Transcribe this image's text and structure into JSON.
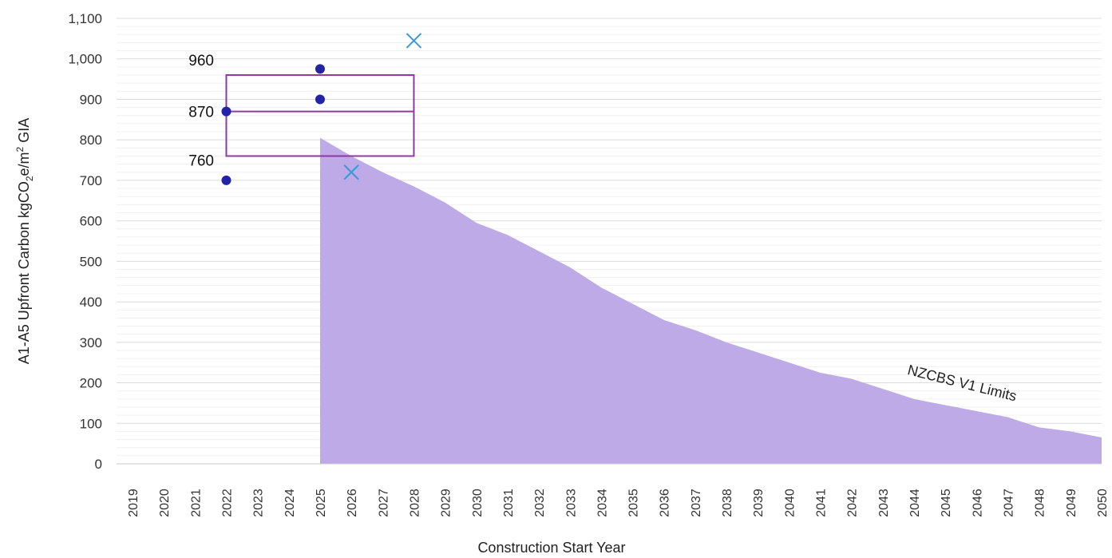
{
  "chart_data": {
    "type": "area",
    "title": "",
    "xlabel": "Construction Start Year",
    "ylabel_main": "A1-A5 Upfront Carbon kgCO",
    "ylabel_sub": "2",
    "ylabel_mid": "e/m",
    "ylabel_sup": "2",
    "ylabel_end": " GIA",
    "ylim": [
      0,
      1100
    ],
    "y_ticks": [
      "0",
      "100",
      "200",
      "300",
      "400",
      "500",
      "600",
      "700",
      "800",
      "900",
      "1,000",
      "1,100"
    ],
    "x_ticks": [
      "2019",
      "2020",
      "2021",
      "2022",
      "2023",
      "2024",
      "2025",
      "2026",
      "2027",
      "2028",
      "2029",
      "2030",
      "2031",
      "2032",
      "2033",
      "2034",
      "2035",
      "2036",
      "2037",
      "2038",
      "2039",
      "2040",
      "2041",
      "2042",
      "2043",
      "2044",
      "2045",
      "2046",
      "2047",
      "2048",
      "2049",
      "2050"
    ],
    "grid": true,
    "colors": {
      "area": "#bfaae8",
      "dots": "#2323a8",
      "crosses": "#3a9ad9",
      "box": "#8e3aa0",
      "grid": "#e6e6e6"
    },
    "series": [
      {
        "name": "NZCBS V1 Limits",
        "kind": "area",
        "x": [
          2025,
          2026,
          2027,
          2028,
          2029,
          2030,
          2031,
          2032,
          2033,
          2034,
          2035,
          2036,
          2037,
          2038,
          2039,
          2040,
          2041,
          2042,
          2043,
          2044,
          2045,
          2046,
          2047,
          2048,
          2049,
          2050
        ],
        "y": [
          805,
          760,
          720,
          685,
          645,
          595,
          565,
          525,
          485,
          435,
          395,
          355,
          330,
          300,
          275,
          250,
          225,
          210,
          185,
          160,
          145,
          130,
          115,
          90,
          80,
          65
        ]
      },
      {
        "kind": "scatter-dot",
        "points": [
          [
            2022,
            870
          ],
          [
            2022,
            700
          ],
          [
            2025,
            975
          ],
          [
            2025,
            900
          ]
        ]
      },
      {
        "kind": "scatter-cross",
        "points": [
          [
            2026,
            720
          ],
          [
            2028,
            1045
          ]
        ]
      }
    ],
    "range_box": {
      "x_start": 2022,
      "x_end": 2028,
      "low": 760,
      "median": 870,
      "high": 960,
      "labels": [
        "960",
        "870",
        "760"
      ]
    }
  }
}
